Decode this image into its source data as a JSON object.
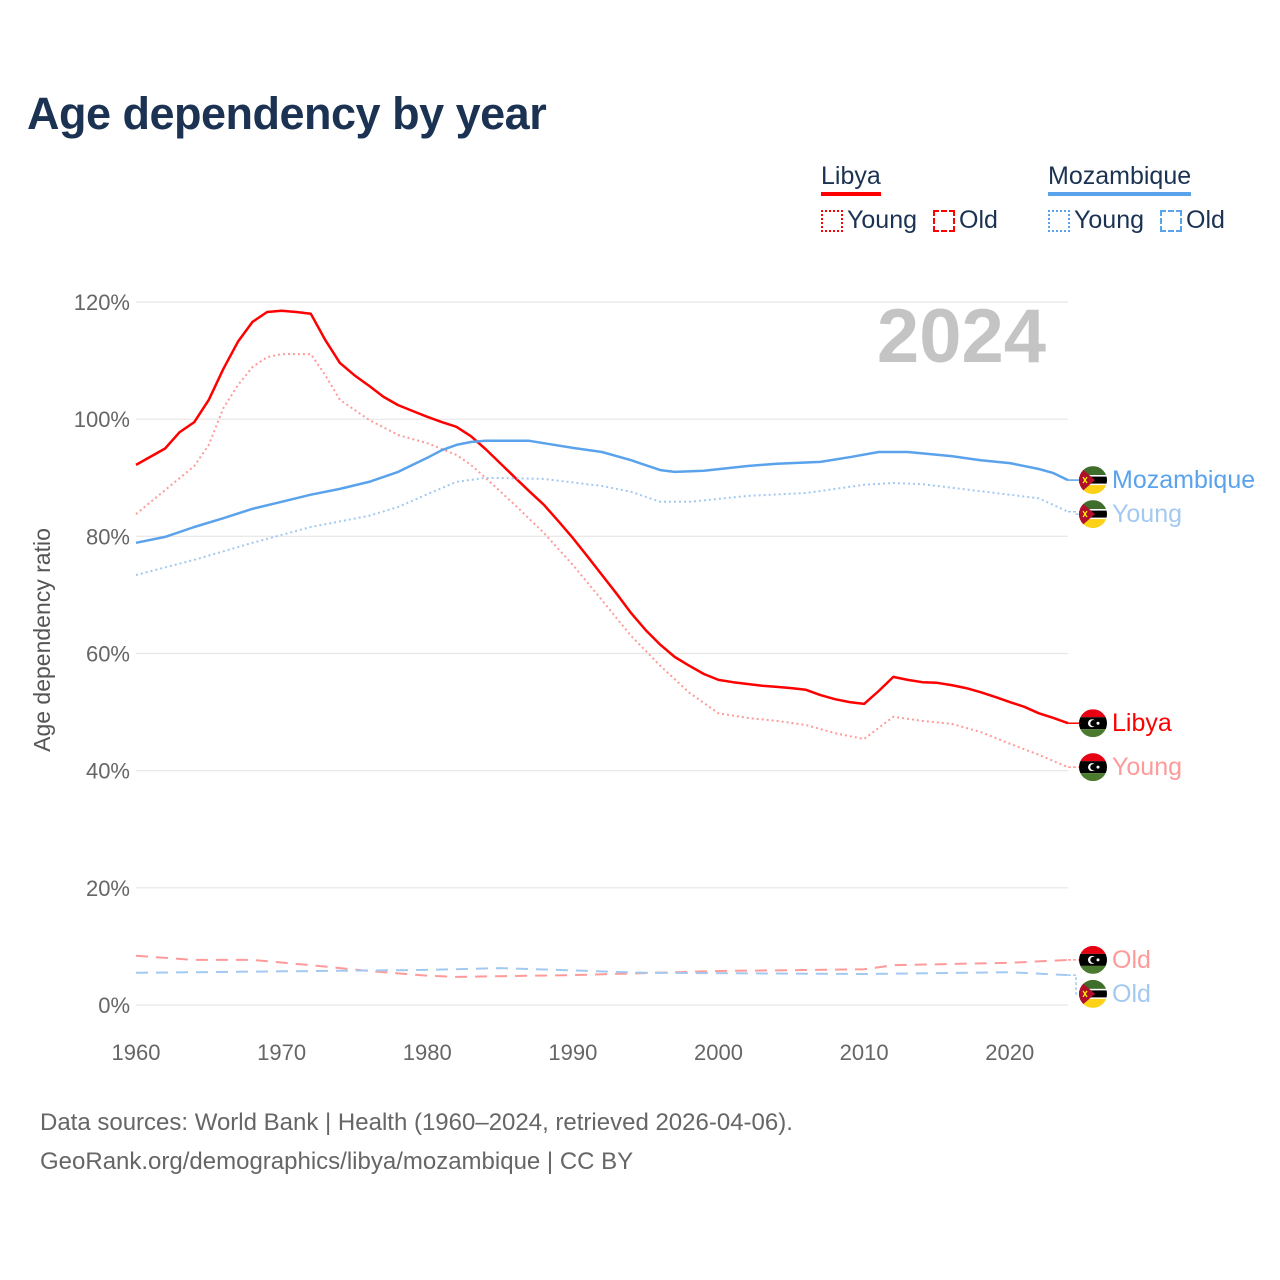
{
  "title": "Age dependency by year",
  "year_badge": "2024",
  "legend": {
    "groups": [
      {
        "country": "Libya",
        "color": "#ff0000",
        "young_label": "Young",
        "old_label": "Old"
      },
      {
        "country": "Mozambique",
        "color": "#5aa3ec",
        "young_label": "Young",
        "old_label": "Old"
      }
    ]
  },
  "footer": {
    "source": "Data sources: World Bank | Health (1960–2024, retrieved 2026-04-06).",
    "credit": "GeoRank.org/demographics/libya/mozambique | CC BY"
  },
  "chart_data": {
    "type": "line",
    "title": "Age dependency by year",
    "xlabel": "",
    "ylabel": "Age dependency ratio",
    "xlim": [
      1960,
      2024
    ],
    "ylim": [
      0,
      120
    ],
    "x_ticks": [
      "1960",
      "1970",
      "1980",
      "1990",
      "2000",
      "2010",
      "2020"
    ],
    "y_ticks": [
      "0%",
      "20%",
      "40%",
      "60%",
      "80%",
      "100%",
      "120%"
    ],
    "grid": true,
    "series": [
      {
        "name": "Libya",
        "end_label": "Libya",
        "country": "libya",
        "style": "solid",
        "color": "#ff0000",
        "x": [
          1960,
          1962,
          1963,
          1964,
          1965,
          1966,
          1967,
          1968,
          1969,
          1970,
          1971,
          1972,
          1973,
          1974,
          1975,
          1976,
          1977,
          1978,
          1979,
          1980,
          1981,
          1982,
          1983,
          1984,
          1985,
          1986,
          1987,
          1988,
          1989,
          1990,
          1991,
          1992,
          1993,
          1994,
          1995,
          1996,
          1997,
          1998,
          1999,
          2000,
          2001,
          2002,
          2003,
          2004,
          2005,
          2006,
          2007,
          2008,
          2009,
          2010,
          2011,
          2012,
          2013,
          2014,
          2015,
          2016,
          2017,
          2018,
          2019,
          2020,
          2021,
          2022,
          2023,
          2024
        ],
        "y": [
          92.2,
          95,
          97.8,
          99.5,
          103.3,
          108.6,
          113.2,
          116.6,
          118.3,
          118.5,
          118.3,
          118,
          113.5,
          109.6,
          107.5,
          105.7,
          103.8,
          102.4,
          101.4,
          100.4,
          99.5,
          98.7,
          97.1,
          94.9,
          92.5,
          90.1,
          87.7,
          85.4,
          82.6,
          79.7,
          76.6,
          73.4,
          70.2,
          66.9,
          64,
          61.5,
          59.4,
          57.9,
          56.5,
          55.5,
          55.1,
          54.8,
          54.5,
          54.3,
          54.1,
          53.8,
          52.9,
          52.2,
          51.7,
          51.4,
          53.6,
          56,
          55.5,
          55.1,
          55,
          54.6,
          54.1,
          53.4,
          52.6,
          51.7,
          50.9,
          49.8,
          49,
          48.1
        ]
      },
      {
        "name": "Libya Young",
        "end_label": "Young",
        "country": "libya",
        "style": "dotted",
        "color": "#ff9a9a",
        "x": [
          1960,
          1962,
          1964,
          1965,
          1966,
          1967,
          1968,
          1969,
          1970,
          1972,
          1973,
          1974,
          1975,
          1976,
          1978,
          1980,
          1982,
          1983,
          1984,
          1986,
          1988,
          1990,
          1992,
          1994,
          1996,
          1998,
          2000,
          2002,
          2004,
          2006,
          2008,
          2010,
          2012,
          2014,
          2016,
          2018,
          2020,
          2022,
          2024
        ],
        "y": [
          83.8,
          87.9,
          92,
          95.6,
          101.9,
          105.8,
          108.9,
          110.6,
          111.1,
          111.1,
          107.5,
          103.3,
          101.6,
          99.9,
          97.3,
          95.9,
          93.9,
          92.2,
          90,
          85.4,
          80.6,
          75.1,
          69.1,
          63,
          57.9,
          53.3,
          49.8,
          49,
          48.5,
          47.8,
          46.4,
          45.4,
          49.2,
          48.5,
          48,
          46.6,
          44.6,
          42.7,
          40.6
        ]
      },
      {
        "name": "Libya Old",
        "end_label": "Old",
        "country": "libya",
        "style": "dashed",
        "color": "#ff9a9a",
        "x": [
          1960,
          1964,
          1968,
          1972,
          1976,
          1980,
          1982,
          1990,
          2000,
          2010,
          2012,
          2020,
          2024
        ],
        "y": [
          8.4,
          7.7,
          7.7,
          6.8,
          5.8,
          5,
          4.8,
          5.1,
          5.8,
          6.1,
          6.8,
          7.2,
          7.7
        ]
      },
      {
        "name": "Mozambique",
        "end_label": "Mozambique",
        "country": "mozambique",
        "style": "solid",
        "color": "#5aa3ec",
        "x": [
          1960,
          1962,
          1964,
          1966,
          1968,
          1970,
          1972,
          1974,
          1976,
          1978,
          1980,
          1981,
          1982,
          1983,
          1984,
          1987,
          1988,
          1990,
          1992,
          1994,
          1996,
          1997,
          1999,
          2002,
          2004,
          2007,
          2009,
          2011,
          2013,
          2016,
          2018,
          2020,
          2022,
          2023,
          2024
        ],
        "y": [
          78.9,
          79.9,
          81.6,
          83.1,
          84.7,
          85.9,
          87.1,
          88.1,
          89.3,
          91,
          93.4,
          94.7,
          95.6,
          96.1,
          96.3,
          96.3,
          95.9,
          95.1,
          94.4,
          93,
          91.3,
          91,
          91.2,
          92,
          92.4,
          92.7,
          93.5,
          94.4,
          94.4,
          93.7,
          93,
          92.5,
          91.5,
          90.8,
          89.6
        ]
      },
      {
        "name": "Mozambique Young",
        "end_label": "Young",
        "country": "mozambique",
        "style": "dotted",
        "color": "#a3c9f0",
        "x": [
          1960,
          1964,
          1968,
          1972,
          1976,
          1978,
          1980,
          1982,
          1984,
          1988,
          1992,
          1994,
          1996,
          1998,
          2002,
          2006,
          2010,
          2012,
          2014,
          2018,
          2022,
          2024
        ],
        "y": [
          73.4,
          76,
          78.9,
          81.6,
          83.5,
          85,
          87.2,
          89.3,
          90,
          89.8,
          88.6,
          87.6,
          85.9,
          85.9,
          86.9,
          87.4,
          88.8,
          89.1,
          88.9,
          87.7,
          86.5,
          84.2
        ]
      },
      {
        "name": "Mozambique Old",
        "end_label": "Old",
        "country": "mozambique",
        "style": "dashed",
        "color": "#a3c9f0",
        "x": [
          1960,
          1980,
          1985,
          1995,
          2010,
          2020,
          2024
        ],
        "y": [
          5.5,
          6,
          6.3,
          5.5,
          5.3,
          5.6,
          5.1
        ]
      }
    ]
  }
}
